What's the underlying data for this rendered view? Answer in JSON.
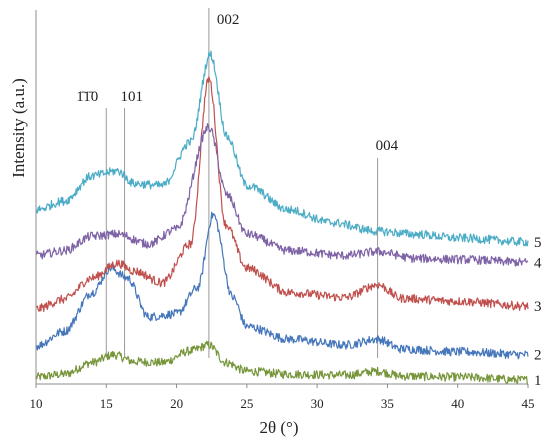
{
  "chart_data": {
    "type": "line",
    "xlabel": "2θ (°)",
    "ylabel": "Intensity (a.u.)",
    "xlim": [
      10,
      45
    ],
    "x_ticks": [
      "10",
      "15",
      "20",
      "25",
      "30",
      "35",
      "40",
      "45"
    ],
    "y_ticks": false,
    "grid": false,
    "legend": "end-of-line labels",
    "reference_lines_x": [
      15.0,
      16.3,
      22.3,
      34.3
    ],
    "peak_labels": [
      {
        "text": "1̄1̄0",
        "x": 15.0
      },
      {
        "text": "101",
        "x": 16.3
      },
      {
        "text": "002",
        "x": 22.3
      },
      {
        "text": "004",
        "x": 34.3
      }
    ],
    "series": [
      {
        "label": "1",
        "color": "#77963b",
        "points": [
          [
            10,
            0.3
          ],
          [
            12,
            0.6
          ],
          [
            14,
            1.8
          ],
          [
            15.5,
            2.6
          ],
          [
            17,
            1.9
          ],
          [
            19,
            1.8
          ],
          [
            21,
            3.0
          ],
          [
            22.3,
            3.6
          ],
          [
            23.5,
            1.8
          ],
          [
            25,
            0.9
          ],
          [
            28,
            0.6
          ],
          [
            32,
            0.5
          ],
          [
            34.3,
            0.9
          ],
          [
            36,
            0.4
          ],
          [
            40,
            0.3
          ],
          [
            45,
            0.0
          ]
        ]
      },
      {
        "label": "2",
        "color": "#4677bb",
        "points": [
          [
            10,
            3.5
          ],
          [
            12,
            5.0
          ],
          [
            14,
            9.0
          ],
          [
            15.3,
            11.5
          ],
          [
            16.5,
            10.5
          ],
          [
            18,
            6.5
          ],
          [
            20,
            6.8
          ],
          [
            21.5,
            9.5
          ],
          [
            22.6,
            17.0
          ],
          [
            24,
            8.5
          ],
          [
            25,
            5.5
          ],
          [
            28,
            4.2
          ],
          [
            32,
            3.6
          ],
          [
            34.3,
            4.2
          ],
          [
            36,
            3.2
          ],
          [
            40,
            2.9
          ],
          [
            45,
            2.6
          ]
        ]
      },
      {
        "label": "3",
        "color": "#c0504d",
        "points": [
          [
            10,
            7.3
          ],
          [
            12,
            8.3
          ],
          [
            14,
            10.5
          ],
          [
            15.8,
            12.0
          ],
          [
            17,
            11.2
          ],
          [
            19,
            10.0
          ],
          [
            21,
            14.0
          ],
          [
            22.3,
            31.0
          ],
          [
            23.5,
            16.0
          ],
          [
            25,
            11.5
          ],
          [
            28,
            9.0
          ],
          [
            32,
            8.5
          ],
          [
            34.3,
            9.8
          ],
          [
            36,
            8.4
          ],
          [
            40,
            8.1
          ],
          [
            45,
            7.6
          ]
        ]
      },
      {
        "label": "4",
        "color": "#7f63a7",
        "points": [
          [
            10,
            12.8
          ],
          [
            12,
            13.3
          ],
          [
            14,
            14.8
          ],
          [
            15.8,
            15.0
          ],
          [
            18,
            14.0
          ],
          [
            20,
            15.5
          ],
          [
            22.3,
            26.0
          ],
          [
            23.6,
            19.0
          ],
          [
            25,
            15.0
          ],
          [
            28,
            13.3
          ],
          [
            32,
            12.8
          ],
          [
            34.3,
            13.2
          ],
          [
            37,
            12.5
          ],
          [
            40,
            12.4
          ],
          [
            45,
            12.1
          ]
        ]
      },
      {
        "label": "5",
        "color": "#4bacc6",
        "points": [
          [
            10,
            17.5
          ],
          [
            12,
            18.4
          ],
          [
            14,
            21.0
          ],
          [
            15.8,
            21.5
          ],
          [
            17,
            20.2
          ],
          [
            19,
            20.0
          ],
          [
            21,
            24.5
          ],
          [
            22.4,
            33.5
          ],
          [
            23.6,
            25.0
          ],
          [
            25,
            20.0
          ],
          [
            28,
            17.5
          ],
          [
            31,
            16.2
          ],
          [
            34.3,
            15.3
          ],
          [
            37,
            15.0
          ],
          [
            40,
            14.6
          ],
          [
            45,
            14.2
          ]
        ]
      }
    ]
  }
}
